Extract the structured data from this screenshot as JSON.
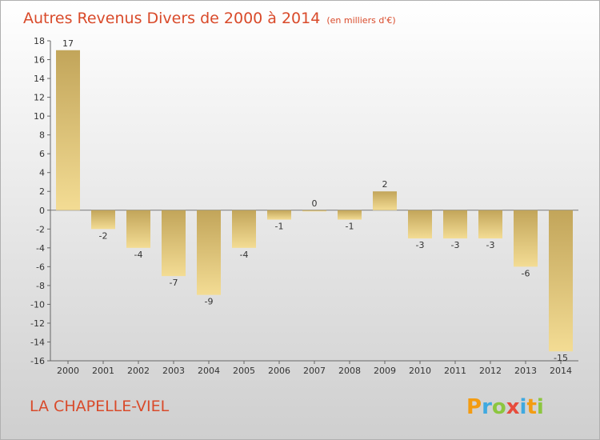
{
  "chart_data": {
    "type": "bar",
    "title": "Autres Revenus Divers de 2000 à 2014",
    "subtitle": "(en milliers d'€)",
    "categories": [
      "2000",
      "2001",
      "2002",
      "2003",
      "2004",
      "2005",
      "2006",
      "2007",
      "2008",
      "2009",
      "2010",
      "2011",
      "2012",
      "2013",
      "2014"
    ],
    "values": [
      17,
      -2,
      -4,
      -7,
      -9,
      -4,
      -1,
      0,
      -1,
      2,
      -3,
      -3,
      -3,
      -6,
      -15
    ],
    "data_labels": [
      "17",
      "-2",
      "-4",
      "-7",
      "-9",
      "-4",
      "-1",
      "0",
      "-1",
      "2",
      "-3",
      "-3",
      "-3",
      "-6",
      "-15"
    ],
    "yticks": [
      18,
      16,
      14,
      12,
      10,
      8,
      6,
      4,
      2,
      0,
      -2,
      -4,
      -6,
      -8,
      -10,
      -12,
      -14,
      -16
    ],
    "ylim": [
      -16,
      18
    ],
    "xlabel": "",
    "ylabel": "",
    "grid": false,
    "bar_color": "#c8ad60"
  },
  "footer": {
    "commune": "LA CHAPELLE-VIEL",
    "brand_letters": [
      "P",
      "r",
      "o",
      "x",
      "i",
      "t",
      "i"
    ],
    "brand_colors": [
      "#f39c12",
      "#3fa9e0",
      "#8cc63f",
      "#e74c3c",
      "#3fa9e0",
      "#f39c12",
      "#8cc63f"
    ]
  }
}
